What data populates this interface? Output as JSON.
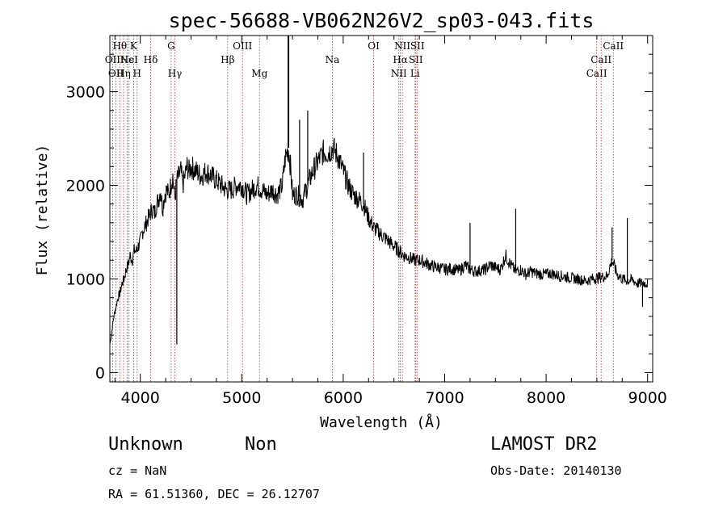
{
  "chart_data": {
    "type": "line",
    "title": "spec-56688-VB062N26V2_sp03-043.fits",
    "xlabel": "Wavelength (Å)",
    "ylabel": "Flux (relative)",
    "xlim": [
      3700,
      9050
    ],
    "ylim": [
      -100,
      3600
    ],
    "xticks": [
      4000,
      5000,
      6000,
      7000,
      8000,
      9000
    ],
    "yticks": [
      0,
      1000,
      2000,
      3000
    ],
    "grid": false,
    "line_color": "#000000",
    "marker_color": "#b03030",
    "series": [
      {
        "x": [
          3700,
          3720,
          3740,
          3760,
          3780,
          3800,
          3820,
          3840,
          3860,
          3880,
          3900,
          3920,
          3940,
          3960,
          3980,
          4000,
          4020,
          4040,
          4060,
          4080,
          4100,
          4120,
          4140,
          4160,
          4180,
          4200,
          4220,
          4240,
          4260,
          4280,
          4300,
          4320,
          4340,
          4360,
          4380,
          4400,
          4420,
          4440,
          4460,
          4480,
          4500,
          4550,
          4600,
          4650,
          4700,
          4750,
          4800,
          4850,
          4900,
          4950,
          5000,
          5050,
          5100,
          5150,
          5200,
          5250,
          5300,
          5350,
          5400,
          5430,
          5460,
          5480,
          5500,
          5550,
          5600,
          5650,
          5700,
          5750,
          5800,
          5850,
          5900,
          5950,
          6000,
          6050,
          6100,
          6150,
          6200,
          6250,
          6300,
          6350,
          6400,
          6450,
          6500,
          6550,
          6600,
          6650,
          6700,
          6750,
          6800,
          6850,
          6900,
          6950,
          7000,
          7050,
          7100,
          7150,
          7200,
          7250,
          7300,
          7350,
          7400,
          7450,
          7500,
          7550,
          7600,
          7650,
          7700,
          7750,
          7800,
          7850,
          7900,
          7950,
          8000,
          8050,
          8100,
          8150,
          8200,
          8250,
          8300,
          8350,
          8400,
          8450,
          8500,
          8550,
          8600,
          8650,
          8700,
          8750,
          8800,
          8850,
          8900,
          8950,
          9000
        ],
        "values": [
          300,
          450,
          600,
          700,
          800,
          850,
          950,
          1000,
          1100,
          1150,
          1250,
          1200,
          1300,
          1300,
          1350,
          1400,
          1500,
          1550,
          1600,
          1650,
          1700,
          1750,
          1700,
          1800,
          1850,
          1950,
          1750,
          1900,
          1950,
          1900,
          2000,
          2100,
          1850,
          2050,
          2100,
          2150,
          2000,
          2100,
          2200,
          2150,
          2200,
          2150,
          2100,
          2150,
          2100,
          2050,
          2000,
          1950,
          1950,
          2000,
          2000,
          1900,
          1950,
          2000,
          1950,
          1900,
          1950,
          1900,
          2000,
          2300,
          2400,
          2200,
          1900,
          1900,
          1850,
          2000,
          2150,
          2250,
          2350,
          2350,
          2400,
          2300,
          2150,
          2000,
          1900,
          1850,
          1800,
          1650,
          1550,
          1500,
          1450,
          1400,
          1350,
          1300,
          1250,
          1230,
          1200,
          1200,
          1180,
          1150,
          1130,
          1120,
          1100,
          1110,
          1100,
          1090,
          1150,
          1100,
          1080,
          1090,
          1100,
          1150,
          1120,
          1100,
          1250,
          1150,
          1080,
          1100,
          1050,
          1080,
          1060,
          1050,
          1050,
          1060,
          1040,
          1030,
          1020,
          1010,
          1000,
          990,
          980,
          1000,
          1010,
          1020,
          1030,
          1200,
          1050,
          1000,
          980,
          990,
          950,
          960,
          950
        ],
        "spikes": [
          {
            "x": 4360,
            "y": 300
          },
          {
            "x": 5460,
            "y": 3600
          },
          {
            "x": 5570,
            "y": 2700
          },
          {
            "x": 5650,
            "y": 2800
          },
          {
            "x": 6200,
            "y": 2350
          },
          {
            "x": 7250,
            "y": 1600
          },
          {
            "x": 7700,
            "y": 1750
          },
          {
            "x": 8650,
            "y": 1550
          },
          {
            "x": 8800,
            "y": 1650
          },
          {
            "x": 8950,
            "y": 700
          }
        ]
      }
    ],
    "lines": [
      {
        "x": 3727,
        "label": "OII",
        "row": 2
      },
      {
        "x": 3760,
        "label": "OII",
        "row": 3
      },
      {
        "x": 3798,
        "label": "Hθ",
        "row": 1
      },
      {
        "x": 3835,
        "label": "Hη",
        "row": 3
      },
      {
        "x": 3869,
        "label": "Hε",
        "row": 2
      },
      {
        "x": 3889,
        "label": "NeI",
        "row": 2
      },
      {
        "x": 3934,
        "label": "K",
        "row": 1
      },
      {
        "x": 3969,
        "label": "H",
        "row": 3
      },
      {
        "x": 4102,
        "label": "Hδ",
        "row": 2
      },
      {
        "x": 4304,
        "label": "G",
        "row": 1
      },
      {
        "x": 4341,
        "label": "Hγ",
        "row": 3
      },
      {
        "x": 4861,
        "label": "Hβ",
        "row": 2
      },
      {
        "x": 5007,
        "label": "OIII",
        "row": 1
      },
      {
        "x": 5175,
        "label": "Mg",
        "row": 3
      },
      {
        "x": 5893,
        "label": "Na",
        "row": 2
      },
      {
        "x": 6300,
        "label": "OI",
        "row": 1
      },
      {
        "x": 6548,
        "label": "NII",
        "row": 3
      },
      {
        "x": 6563,
        "label": "Hα",
        "row": 2
      },
      {
        "x": 6583,
        "label": "NII",
        "row": 1
      },
      {
        "x": 6708,
        "label": "Li",
        "row": 3
      },
      {
        "x": 6716,
        "label": "SII",
        "row": 2
      },
      {
        "x": 6731,
        "label": "SII",
        "row": 1
      },
      {
        "x": 8498,
        "label": "CaII",
        "row": 3
      },
      {
        "x": 8542,
        "label": "CaII",
        "row": 2
      },
      {
        "x": 8662,
        "label": "CaII",
        "row": 1
      }
    ]
  },
  "info": {
    "class": "Unknown",
    "subclass": "Non",
    "survey": "LAMOST DR2",
    "cz": "cz = NaN",
    "obs_date": "Obs-Date: 20140130",
    "coords": "RA =  61.51360, DEC =  26.12707"
  }
}
